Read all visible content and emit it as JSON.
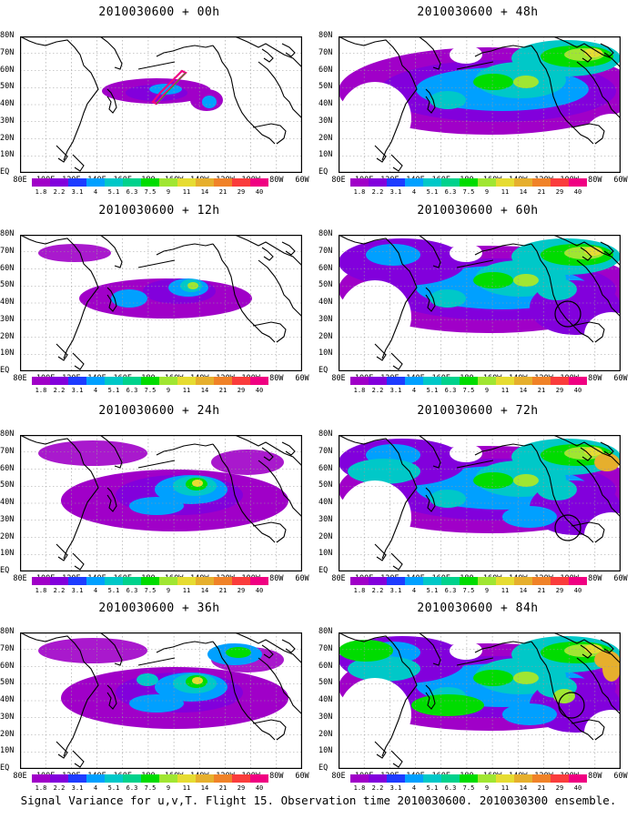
{
  "caption": "Signal Variance for u,v,T. Flight 15. Observation time 2010030600. 2010030300 ensemble.",
  "axes": {
    "lat_labels": [
      "80N",
      "70N",
      "60N",
      "50N",
      "40N",
      "30N",
      "20N",
      "10N",
      "EQ"
    ],
    "lon_labels": [
      "80E",
      "100E",
      "120E",
      "140E",
      "160E",
      "180",
      "160W",
      "140W",
      "120W",
      "100W",
      "80W",
      "60W"
    ]
  },
  "colorbar": {
    "labels": [
      "1.8",
      "2.2",
      "3.1",
      "4",
      "5.1",
      "6.3",
      "7.5",
      "9",
      "11",
      "14",
      "21",
      "29",
      "40"
    ],
    "colors": [
      "#a000c8",
      "#8200dc",
      "#1e3cff",
      "#00a0ff",
      "#00c8c8",
      "#00d28c",
      "#00dc00",
      "#a0e632",
      "#e6dc32",
      "#e6af2d",
      "#f08228",
      "#fa3c3c",
      "#f00082"
    ]
  },
  "colors": {
    "coast": "#000000",
    "grid": "#9a9a9a",
    "flight_track": "#f00082",
    "background": "#ffffff"
  },
  "panels": [
    {
      "id": "00h",
      "title": "2010030600 + 00h",
      "features": {
        "flight_track": true,
        "circle": false,
        "level": 1
      }
    },
    {
      "id": "48h",
      "title": "2010030600 + 48h",
      "features": {
        "flight_track": false,
        "circle": false,
        "level": 4
      }
    },
    {
      "id": "12h",
      "title": "2010030600 + 12h",
      "features": {
        "flight_track": false,
        "circle": false,
        "level": 2
      }
    },
    {
      "id": "60h",
      "title": "2010030600 + 60h",
      "features": {
        "flight_track": false,
        "circle": true,
        "level": 5
      }
    },
    {
      "id": "24h",
      "title": "2010030600 + 24h",
      "features": {
        "flight_track": false,
        "circle": false,
        "level": 3
      }
    },
    {
      "id": "72h",
      "title": "2010030600 + 72h",
      "features": {
        "flight_track": false,
        "circle": true,
        "level": 6
      }
    },
    {
      "id": "36h",
      "title": "2010030600 + 36h",
      "features": {
        "flight_track": false,
        "circle": false,
        "level": 3
      }
    },
    {
      "id": "84h",
      "title": "2010030600 + 84h",
      "features": {
        "flight_track": false,
        "circle": true,
        "level": 7
      }
    }
  ]
}
